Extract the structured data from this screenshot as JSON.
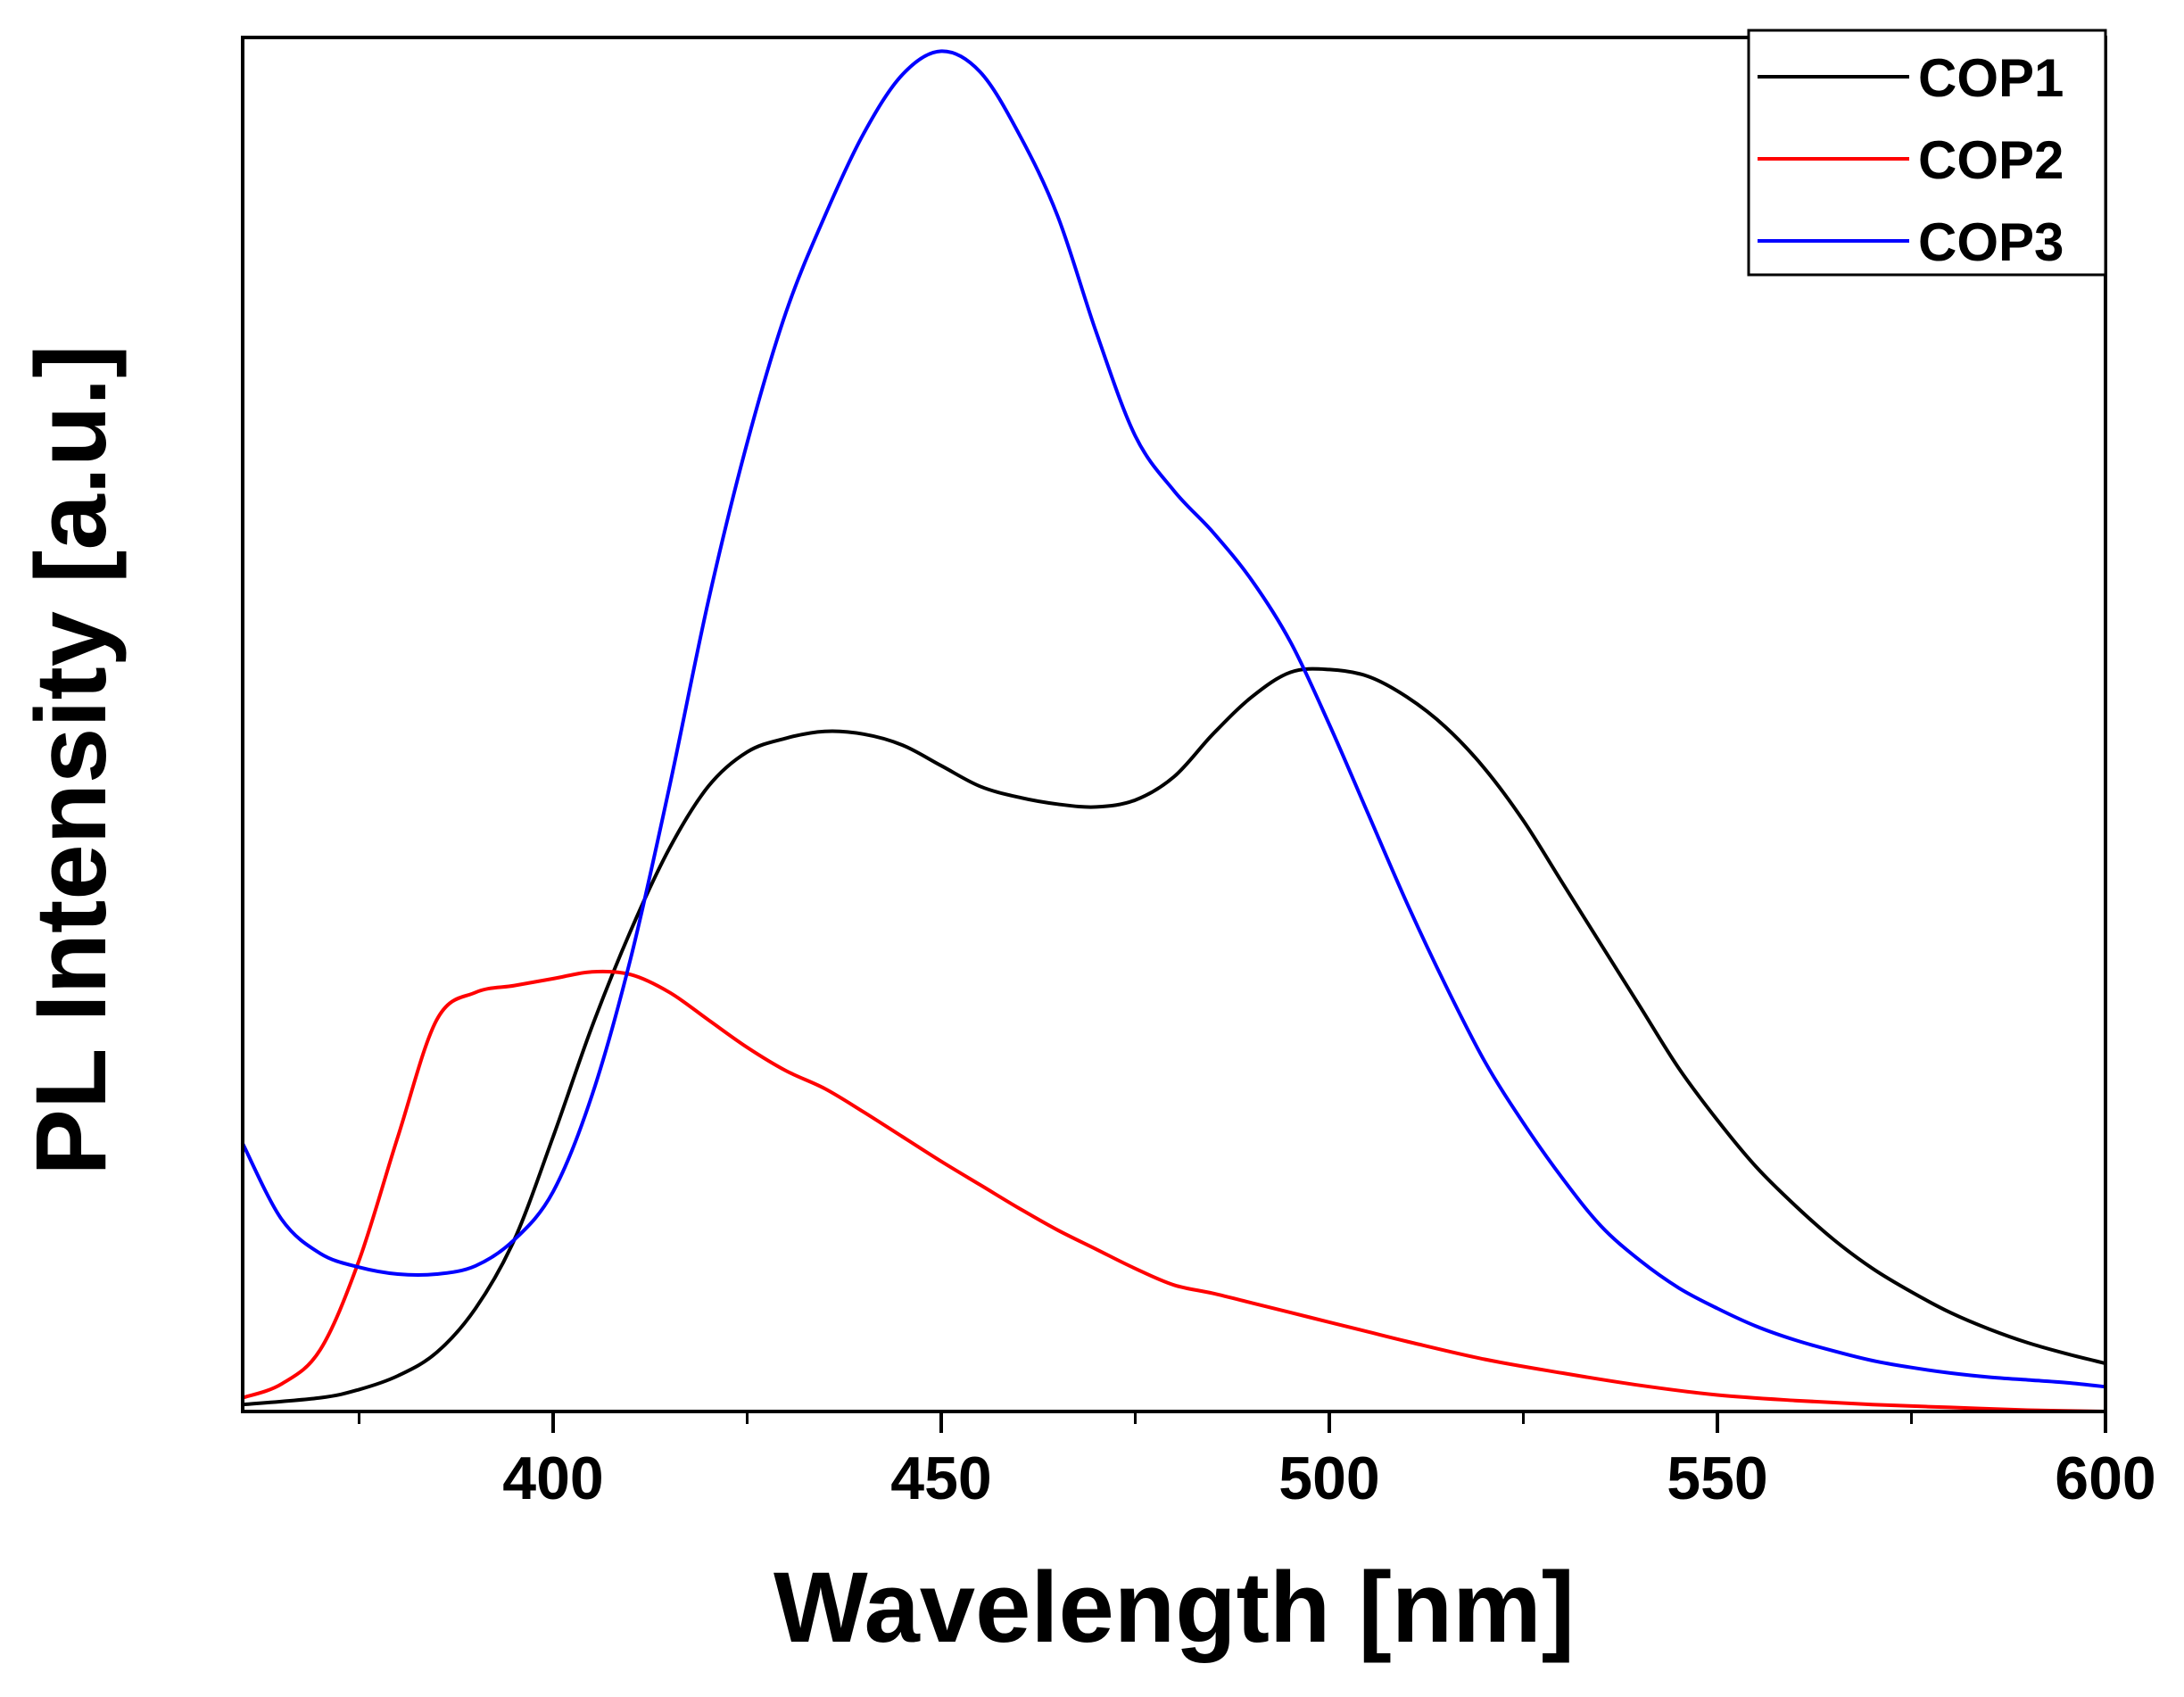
{
  "chart_data": {
    "type": "line",
    "title": "",
    "xlabel": "Wavelength [nm]",
    "ylabel": "PL Intensity [a.u.]",
    "xlim": [
      360,
      600
    ],
    "ylim": [
      0,
      100
    ],
    "y_ticks_shown": false,
    "grid": false,
    "legend_position": "top-right",
    "x_ticks": [
      {
        "value": 400,
        "label": "400"
      },
      {
        "value": 450,
        "label": "450"
      },
      {
        "value": 500,
        "label": "500"
      },
      {
        "value": 550,
        "label": "550"
      },
      {
        "value": 600,
        "label": "600"
      }
    ],
    "x_minor_ticks": [
      375,
      425,
      475,
      525,
      575
    ],
    "series": [
      {
        "name": "COP1",
        "color": "#000000",
        "x": [
          360,
          370,
          375,
          380,
          385,
          390,
          395,
          400,
          405,
          410,
          415,
          420,
          425,
          430,
          435,
          440,
          445,
          450,
          455,
          460,
          465,
          470,
          475,
          480,
          485,
          490,
          495,
          500,
          505,
          510,
          515,
          520,
          525,
          530,
          535,
          540,
          545,
          550,
          555,
          560,
          565,
          570,
          575,
          580,
          585,
          590,
          595,
          600
        ],
        "y": [
          0.5,
          1,
          1.6,
          2.6,
          4.3,
          7.5,
          12.5,
          20,
          28,
          35,
          41,
          45.5,
          48,
          49,
          49.5,
          49.3,
          48.5,
          47,
          45.5,
          44.7,
          44.2,
          44,
          44.5,
          46.2,
          49.3,
          52,
          53.8,
          54,
          53.5,
          52,
          49.8,
          46.8,
          43,
          38.5,
          34,
          29.5,
          25,
          21.2,
          17.8,
          15,
          12.5,
          10.4,
          8.7,
          7.2,
          6,
          5,
          4.2,
          3.5
        ]
      },
      {
        "name": "COP2",
        "color": "#ff0000",
        "x": [
          360,
          365,
          370,
          375,
          380,
          385,
          390,
          395,
          400,
          405,
          410,
          415,
          420,
          425,
          430,
          435,
          440,
          445,
          450,
          455,
          460,
          465,
          470,
          475,
          480,
          485,
          490,
          495,
          500,
          505,
          510,
          520,
          530,
          540,
          550,
          560,
          570,
          580,
          590,
          600
        ],
        "y": [
          1,
          2,
          4.5,
          11,
          20,
          28.5,
          30.5,
          31,
          31.5,
          32,
          31.8,
          30.5,
          28.5,
          26.5,
          24.8,
          23.5,
          21.8,
          20,
          18.2,
          16.5,
          14.8,
          13.2,
          11.8,
          10.4,
          9.2,
          8.6,
          7.9,
          7.2,
          6.5,
          5.8,
          5.1,
          3.8,
          2.8,
          1.9,
          1.2,
          0.8,
          0.5,
          0.3,
          0.1,
          0
        ]
      },
      {
        "name": "COP3",
        "color": "#0000ff",
        "x": [
          360,
          365,
          370,
          375,
          380,
          385,
          390,
          395,
          400,
          405,
          410,
          415,
          420,
          425,
          430,
          435,
          440,
          445,
          450,
          455,
          460,
          465,
          470,
          475,
          480,
          485,
          490,
          495,
          500,
          505,
          510,
          515,
          520,
          525,
          530,
          535,
          540,
          545,
          550,
          555,
          560,
          565,
          570,
          575,
          580,
          585,
          590,
          595,
          600
        ],
        "y": [
          19.5,
          14,
          11.5,
          10.5,
          10,
          10,
          10.6,
          12.5,
          16,
          23,
          33,
          45.5,
          59,
          70.5,
          80,
          87,
          93,
          97.3,
          99,
          97.5,
          93,
          87,
          78.5,
          71,
          67,
          64,
          60.5,
          56,
          50,
          43.5,
          37,
          31,
          25.5,
          21,
          17,
          13.5,
          11,
          9,
          7.5,
          6.2,
          5.2,
          4.4,
          3.7,
          3.2,
          2.8,
          2.5,
          2.3,
          2.1,
          1.8
        ]
      }
    ]
  }
}
